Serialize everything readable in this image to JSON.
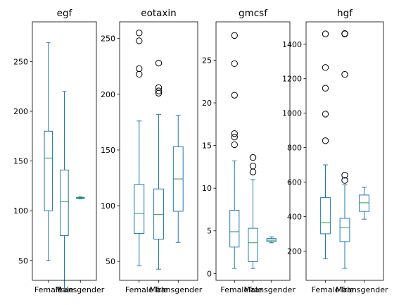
{
  "chart_data": [
    {
      "type": "boxplot",
      "title": "egf",
      "categories": [
        "Female",
        "Male",
        "Transgender"
      ],
      "ylim": [
        30,
        290
      ],
      "yticks": [
        50,
        100,
        150,
        200,
        250
      ],
      "boxes": [
        {
          "category": "Female",
          "whislo": 50,
          "q1": 100,
          "med": 153,
          "q3": 180,
          "whishi": 269,
          "fliers": []
        },
        {
          "category": "Male",
          "whislo": 22,
          "q1": 75,
          "med": 109,
          "q3": 141,
          "whishi": 220,
          "fliers": []
        },
        {
          "category": "Transgender",
          "whislo": 112,
          "q1": 112.5,
          "med": 113,
          "q3": 113.5,
          "whishi": 114,
          "fliers": []
        }
      ]
    },
    {
      "type": "boxplot",
      "title": "eotaxin",
      "categories": [
        "Female",
        "Male",
        "Transgender"
      ],
      "ylim": [
        33,
        265
      ],
      "yticks": [
        50,
        100,
        150,
        200,
        250
      ],
      "boxes": [
        {
          "category": "Female",
          "whislo": 46,
          "q1": 75,
          "med": 93,
          "q3": 119,
          "whishi": 176,
          "fliers": [
            218,
            223,
            248,
            255
          ]
        },
        {
          "category": "Male",
          "whislo": 43,
          "q1": 70,
          "med": 92,
          "q3": 115,
          "whishi": 182,
          "fliers": [
            201,
            203,
            206,
            228
          ]
        },
        {
          "category": "Transgender",
          "whislo": 67,
          "q1": 95,
          "med": 124,
          "q3": 153,
          "whishi": 181,
          "fliers": []
        }
      ]
    },
    {
      "type": "boxplot",
      "title": "gmcsf",
      "categories": [
        "Female",
        "Male",
        "Transgender"
      ],
      "ylim": [
        -0.8,
        29.5
      ],
      "yticks": [
        0,
        5,
        10,
        15,
        20,
        25
      ],
      "boxes": [
        {
          "category": "Female",
          "whislo": 0.6,
          "q1": 3.1,
          "med": 4.9,
          "q3": 7.4,
          "whishi": 13.2,
          "fliers": [
            15.1,
            16.0,
            16.4,
            20.9,
            24.6,
            27.9
          ]
        },
        {
          "category": "Male",
          "whislo": 0.6,
          "q1": 1.4,
          "med": 3.6,
          "q3": 5.3,
          "whishi": 11.0,
          "fliers": [
            11.9,
            12.6,
            13.6
          ]
        },
        {
          "category": "Transgender",
          "whislo": 3.6,
          "q1": 3.75,
          "med": 3.9,
          "q3": 4.1,
          "whishi": 4.3,
          "fliers": []
        }
      ]
    },
    {
      "type": "boxplot",
      "title": "hgf",
      "categories": [
        "Female",
        "Male",
        "Transgender"
      ],
      "ylim": [
        30,
        1530
      ],
      "yticks": [
        200,
        400,
        600,
        800,
        1000,
        1200,
        1400
      ],
      "boxes": [
        {
          "category": "Female",
          "whislo": 155,
          "q1": 300,
          "med": 365,
          "q3": 510,
          "whishi": 700,
          "fliers": [
            840,
            995,
            1145,
            1265,
            1460
          ]
        },
        {
          "category": "Male",
          "whislo": 100,
          "q1": 255,
          "med": 335,
          "q3": 390,
          "whishi": 585,
          "fliers": [
            610,
            640,
            1225,
            1460,
            1462
          ]
        },
        {
          "category": "Transgender",
          "whislo": 385,
          "q1": 430,
          "med": 480,
          "q3": 525,
          "whishi": 570,
          "fliers": []
        }
      ]
    }
  ],
  "colors": {
    "box": "#1f77b4",
    "median": "#2ca02c",
    "flier": "#000000",
    "axis": "#000000"
  }
}
